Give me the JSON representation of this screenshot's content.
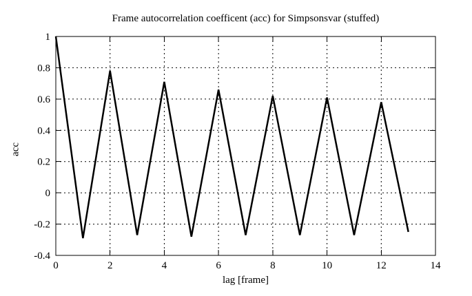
{
  "chart_data": {
    "type": "line",
    "title": "Frame autocorrelation coefficent (acc) for Simpsonsvar (stuffed)",
    "xlabel": "lag [frame]",
    "ylabel": "acc",
    "x": [
      0,
      1,
      2,
      3,
      4,
      5,
      6,
      7,
      8,
      9,
      10,
      11,
      12,
      13
    ],
    "y": [
      1.0,
      -0.29,
      0.78,
      -0.27,
      0.71,
      -0.28,
      0.66,
      -0.27,
      0.62,
      -0.27,
      0.61,
      -0.27,
      0.58,
      -0.25
    ],
    "xlim": [
      0,
      14
    ],
    "ylim": [
      -0.4,
      1
    ],
    "xticks": [
      0,
      2,
      4,
      6,
      8,
      10,
      12,
      14
    ],
    "yticks": [
      1,
      0.8,
      0.6,
      0.4,
      0.2,
      0,
      -0.2,
      -0.4
    ],
    "grid": true,
    "grid_style": "dotted",
    "legend": "none",
    "line_color": "#000000",
    "background_color": "#ffffff"
  }
}
